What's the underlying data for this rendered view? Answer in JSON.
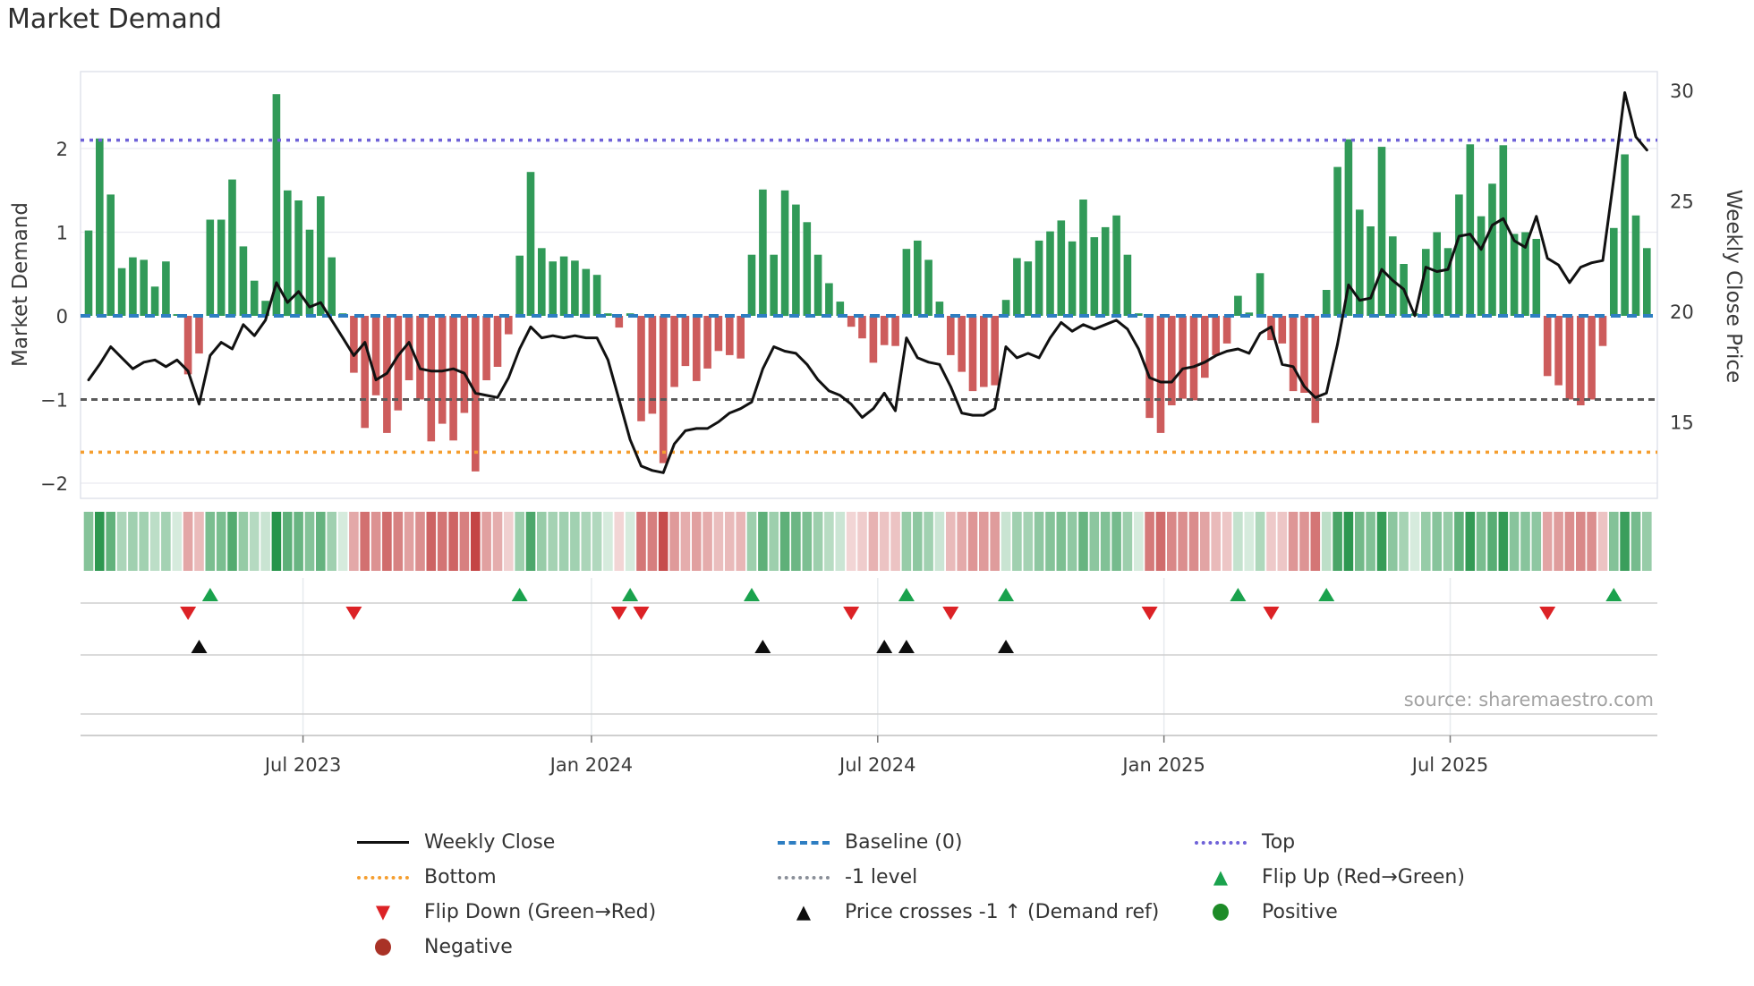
{
  "title": "Market Demand",
  "source": "source: sharemaestro.com",
  "axes": {
    "left_label": "Market Demand",
    "right_label": "Weekly Close Price",
    "left_ticks": [
      "2",
      "1",
      "0",
      "−1",
      "−2"
    ],
    "left_tick_values": [
      2,
      1,
      0,
      -1,
      -2
    ],
    "right_ticks": [
      "30",
      "25",
      "20",
      "15"
    ],
    "right_tick_values": [
      30,
      25,
      20,
      15
    ],
    "x_ticks": [
      "Jul 2023",
      "Jan 2024",
      "Jul 2024",
      "Jan 2025",
      "Jul 2025"
    ],
    "x_tick_week_index": [
      20.4,
      46.5,
      72.4,
      98.3,
      124.2
    ]
  },
  "colors": {
    "bar_positive": "#319a58",
    "bar_negative": "#cd5c5c",
    "price_line": "#111111",
    "baseline": "#2e7ec2",
    "top_line": "#6f62d8",
    "minus_one_line": "#5a5a5a",
    "bottom_line": "#f59e2f",
    "flip_up": "#1aa24d",
    "flip_down": "#dc2226",
    "price_cross": "#0d0d0d",
    "positive_dot": "#1d8b27",
    "negative_dot": "#a93226",
    "heat_green": "38,148,74",
    "heat_red": "192,57,57",
    "grid": "#e9e9f0",
    "panel_line": "#cfcfcf",
    "tick_text": "#3a3a3a"
  },
  "chart_data": {
    "type": "bar+line",
    "title": "Market Demand",
    "ylabel_left": "Market Demand",
    "ylabel_right": "Weekly Close Price",
    "weeks": 142,
    "left_ylim": [
      -2.18,
      2.92
    ],
    "right_ylim": [
      11.5,
      30.6
    ],
    "reference_lines": {
      "top": 2.1,
      "baseline": 0,
      "minus_one": -1,
      "bottom": -1.63
    },
    "series": [
      {
        "name": "Market Demand",
        "type": "bar",
        "values": [
          1.02,
          2.12,
          1.45,
          0.57,
          0.7,
          0.67,
          0.35,
          0.65,
          0.02,
          -0.7,
          -0.45,
          1.15,
          1.15,
          1.63,
          0.83,
          0.42,
          0.18,
          2.65,
          1.5,
          1.38,
          1.03,
          1.43,
          0.7,
          0.03,
          -0.68,
          -1.34,
          -0.95,
          -1.4,
          -1.13,
          -0.77,
          -1.0,
          -1.5,
          -1.29,
          -1.49,
          -1.16,
          -1.86,
          -0.77,
          -0.61,
          -0.22,
          0.72,
          1.72,
          0.81,
          0.65,
          0.71,
          0.66,
          0.56,
          0.49,
          0.03,
          -0.14,
          0.03,
          -1.26,
          -1.17,
          -1.76,
          -0.85,
          -0.6,
          -0.78,
          -0.63,
          -0.42,
          -0.47,
          -0.51,
          0.73,
          1.51,
          0.73,
          1.5,
          1.33,
          1.12,
          0.73,
          0.39,
          0.17,
          -0.13,
          -0.27,
          -0.56,
          -0.35,
          -0.36,
          0.8,
          0.9,
          0.67,
          0.17,
          -0.47,
          -0.67,
          -0.9,
          -0.85,
          -0.83,
          0.19,
          0.69,
          0.65,
          0.9,
          1.01,
          1.14,
          0.89,
          1.39,
          0.94,
          1.06,
          1.2,
          0.73,
          0.03,
          -1.22,
          -1.4,
          -1.07,
          -0.99,
          -1.01,
          -0.74,
          -0.47,
          -0.33,
          0.24,
          0.04,
          0.51,
          -0.29,
          -0.33,
          -0.9,
          -0.92,
          -1.28,
          0.31,
          1.78,
          2.11,
          1.27,
          1.07,
          2.02,
          0.95,
          0.62,
          0.03,
          0.8,
          1.0,
          0.81,
          1.45,
          2.05,
          1.19,
          1.58,
          2.04,
          0.98,
          1.0,
          0.92,
          -0.72,
          -0.83,
          -1.0,
          -1.07,
          -1.0,
          -0.36,
          1.05,
          1.93,
          1.2,
          0.81
        ]
      },
      {
        "name": "Weekly Close",
        "type": "line",
        "axis": "right",
        "values": [
          16.9,
          17.6,
          18.4,
          17.9,
          17.4,
          17.7,
          17.8,
          17.5,
          17.8,
          17.3,
          15.8,
          18.0,
          18.6,
          18.3,
          19.4,
          18.9,
          19.6,
          21.3,
          20.4,
          20.9,
          20.2,
          20.4,
          19.6,
          18.8,
          18.0,
          18.6,
          16.9,
          17.2,
          18.0,
          18.6,
          17.4,
          17.3,
          17.3,
          17.4,
          17.2,
          16.3,
          16.2,
          16.1,
          17.0,
          18.3,
          19.3,
          18.8,
          18.9,
          18.8,
          18.9,
          18.8,
          18.8,
          17.8,
          16.0,
          14.2,
          13.0,
          12.8,
          12.7,
          14.0,
          14.6,
          14.7,
          14.7,
          15.0,
          15.4,
          15.6,
          15.9,
          17.4,
          18.4,
          18.2,
          18.1,
          17.6,
          16.9,
          16.4,
          16.2,
          15.8,
          15.2,
          15.6,
          16.3,
          15.5,
          18.8,
          17.9,
          17.7,
          17.6,
          16.6,
          15.4,
          15.3,
          15.3,
          15.6,
          18.4,
          17.9,
          18.1,
          17.9,
          18.8,
          19.5,
          19.1,
          19.4,
          19.2,
          19.4,
          19.6,
          19.2,
          18.3,
          17.0,
          16.8,
          16.8,
          17.4,
          17.5,
          17.7,
          18.0,
          18.2,
          18.3,
          18.1,
          19.0,
          19.3,
          17.6,
          17.5,
          16.6,
          16.1,
          16.3,
          18.5,
          21.2,
          20.5,
          20.6,
          21.9,
          21.4,
          21.0,
          19.8,
          22.0,
          21.8,
          21.9,
          23.4,
          23.5,
          22.8,
          23.9,
          24.2,
          23.2,
          22.9,
          24.3,
          22.4,
          22.1,
          21.3,
          22.0,
          22.2,
          22.3,
          26.0,
          29.9,
          27.9,
          27.3
        ]
      }
    ],
    "markers": {
      "flip_up_weeks": [
        12,
        40,
        50,
        61,
        75,
        84,
        105,
        113,
        139
      ],
      "flip_down_weeks": [
        10,
        25,
        49,
        51,
        70,
        79,
        97,
        108,
        133
      ],
      "price_cross_weeks": [
        11,
        62,
        73,
        75,
        84
      ]
    },
    "heatmap": {
      "description": "weekly demand sign/intensity strip derived from bar values"
    },
    "grid": "horizontal-light",
    "legend_position": "bottom"
  },
  "legend": {
    "columns": [
      {
        "items": [
          {
            "type": "line",
            "color": "#111111",
            "label": "Weekly Close"
          },
          {
            "type": "dotted",
            "color": "#f59e2f",
            "label": "Bottom"
          },
          {
            "type": "tri-down",
            "color": "#dc2226",
            "label": "Flip Down (Green→Red)"
          },
          {
            "type": "dot",
            "color": "#a93226",
            "label": "Negative"
          }
        ]
      },
      {
        "items": [
          {
            "type": "dashed",
            "color": "#2e7ec2",
            "label": "Baseline (0)"
          },
          {
            "type": "dotted",
            "color": "#8a8f98",
            "label": "-1 level"
          },
          {
            "type": "tri-up",
            "color": "#0d0d0d",
            "label": "Price crosses -1 ↑ (Demand ref)"
          }
        ]
      },
      {
        "items": [
          {
            "type": "dotted",
            "color": "#6f62d8",
            "label": "Top"
          },
          {
            "type": "tri-up",
            "color": "#1aa24d",
            "label": "Flip Up (Red→Green)"
          },
          {
            "type": "dot",
            "color": "#1d8b27",
            "label": "Positive"
          }
        ]
      }
    ]
  }
}
